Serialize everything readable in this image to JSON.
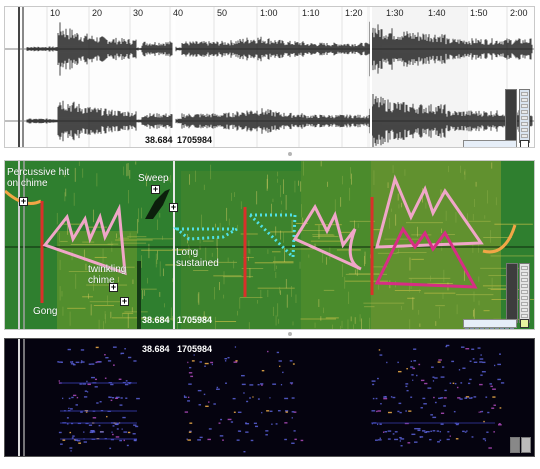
{
  "timeline": {
    "ticks": [
      "10",
      "20",
      "30",
      "40",
      "50",
      "1:00",
      "1:10",
      "1:20",
      "1:30",
      "1:40",
      "1:50",
      "2:00"
    ]
  },
  "waveform": {
    "time_readout": "38.684",
    "frame_readout": "1705984"
  },
  "spectrogram": {
    "time_readout": "38.684",
    "frame_readout": "1705984",
    "annotations": {
      "percussive": "Percussive hit on chime",
      "sweep": "Sweep",
      "twinkling": "twinkling chime",
      "long": "Long sustained",
      "gong": "Gong"
    }
  },
  "peaks": {
    "time_readout": "38.684",
    "frame_readout": "1705984"
  },
  "colors": {
    "spectrogram_bg": "#2f7f2f",
    "annotation_red": "#d9302a",
    "annotation_pink": "#f0a6c8",
    "annotation_magenta": "#d62e84",
    "annotation_cyan": "#4fe0e6",
    "annotation_orange": "#f2a646"
  }
}
